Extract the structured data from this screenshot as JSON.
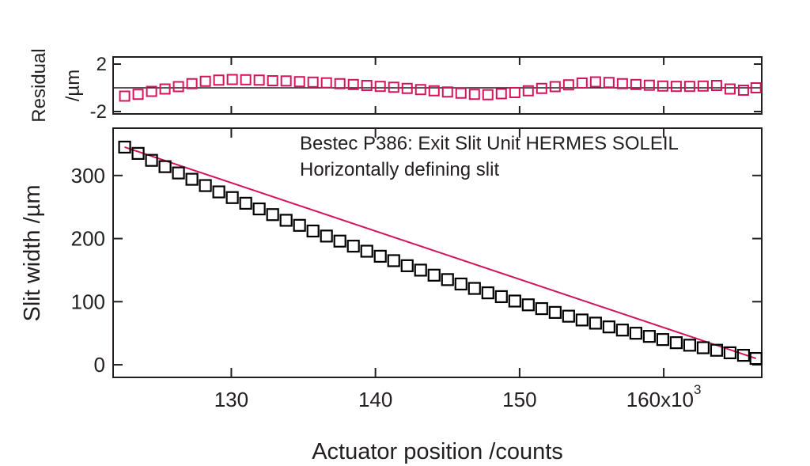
{
  "chart_data": [
    {
      "panel": "residual",
      "type": "scatter",
      "ylabel_lines": [
        "Residual",
        "/µm"
      ],
      "ylim": [
        -2.2,
        2.6
      ],
      "xlim": [
        121800,
        166800
      ],
      "yticks": [
        2,
        -2
      ],
      "ytick_labels": [
        "2",
        "-2"
      ],
      "zero_line": true,
      "marker": "open-square",
      "marker_color": "#d4145a",
      "x": [
        122600,
        123533,
        124467,
        125400,
        126333,
        127267,
        128200,
        129133,
        130067,
        131000,
        131933,
        132867,
        133800,
        134733,
        135667,
        136600,
        137533,
        138467,
        139400,
        140333,
        141267,
        142200,
        143133,
        144067,
        145000,
        145933,
        146867,
        147800,
        148733,
        149667,
        150600,
        151533,
        152467,
        153400,
        154333,
        155267,
        156200,
        157133,
        158067,
        159000,
        159933,
        160867,
        161800,
        162733,
        163667,
        164600,
        165533,
        166400
      ],
      "y": [
        -0.7,
        -0.55,
        -0.3,
        -0.1,
        0.1,
        0.35,
        0.55,
        0.65,
        0.7,
        0.68,
        0.65,
        0.6,
        0.58,
        0.52,
        0.48,
        0.42,
        0.35,
        0.28,
        0.2,
        0.12,
        0.05,
        -0.05,
        -0.15,
        -0.25,
        -0.35,
        -0.45,
        -0.55,
        -0.58,
        -0.5,
        -0.4,
        -0.25,
        -0.05,
        0.1,
        0.25,
        0.4,
        0.5,
        0.45,
        0.35,
        0.28,
        0.22,
        0.15,
        0.12,
        0.12,
        0.15,
        0.2,
        -0.1,
        -0.2,
        0.0
      ]
    },
    {
      "panel": "main",
      "type": "scatter",
      "xlabel": "Actuator position /counts",
      "ylabel": "Slit width /µm",
      "xlim": [
        121800,
        166800
      ],
      "ylim": [
        -20,
        375
      ],
      "xticks": [
        130000,
        140000,
        150000,
        160000
      ],
      "xtick_labels": [
        "130",
        "140",
        "150",
        "160x10"
      ],
      "xtick_superscript": "3",
      "yticks": [
        0,
        100,
        200,
        300
      ],
      "ytick_labels": [
        "0",
        "100",
        "200",
        "300"
      ],
      "annotation_lines": [
        "Bestec P386: Exit Slit Unit HERMES SOLEIL",
        "Horizontally defining slit"
      ],
      "marker": "open-square",
      "marker_color": "#000000",
      "fit_line_color": "#d4145a",
      "fit_line_x": [
        122600,
        166400
      ],
      "fit_line_y": [
        345,
        10
      ],
      "x": [
        122600,
        123533,
        124467,
        125400,
        126333,
        127267,
        128200,
        129133,
        130067,
        131000,
        131933,
        132867,
        133800,
        134733,
        135667,
        136600,
        137533,
        138467,
        139400,
        140333,
        141267,
        142200,
        143133,
        144067,
        145000,
        145933,
        146867,
        147800,
        148733,
        149667,
        150600,
        151533,
        152467,
        153400,
        154333,
        155267,
        156200,
        157133,
        158067,
        159000,
        159933,
        160867,
        161800,
        162733,
        163667,
        164600,
        165533,
        166400
      ],
      "y": [
        345,
        335,
        324,
        314,
        304,
        294,
        284,
        274,
        265,
        256,
        247,
        238,
        229,
        221,
        212,
        204,
        196,
        188,
        180,
        172,
        165,
        157,
        150,
        142,
        135,
        128,
        121,
        114,
        108,
        101,
        95,
        89,
        83,
        77,
        71,
        66,
        60,
        55,
        50,
        45,
        40,
        35,
        31,
        27,
        23,
        19,
        15,
        10
      ]
    }
  ]
}
